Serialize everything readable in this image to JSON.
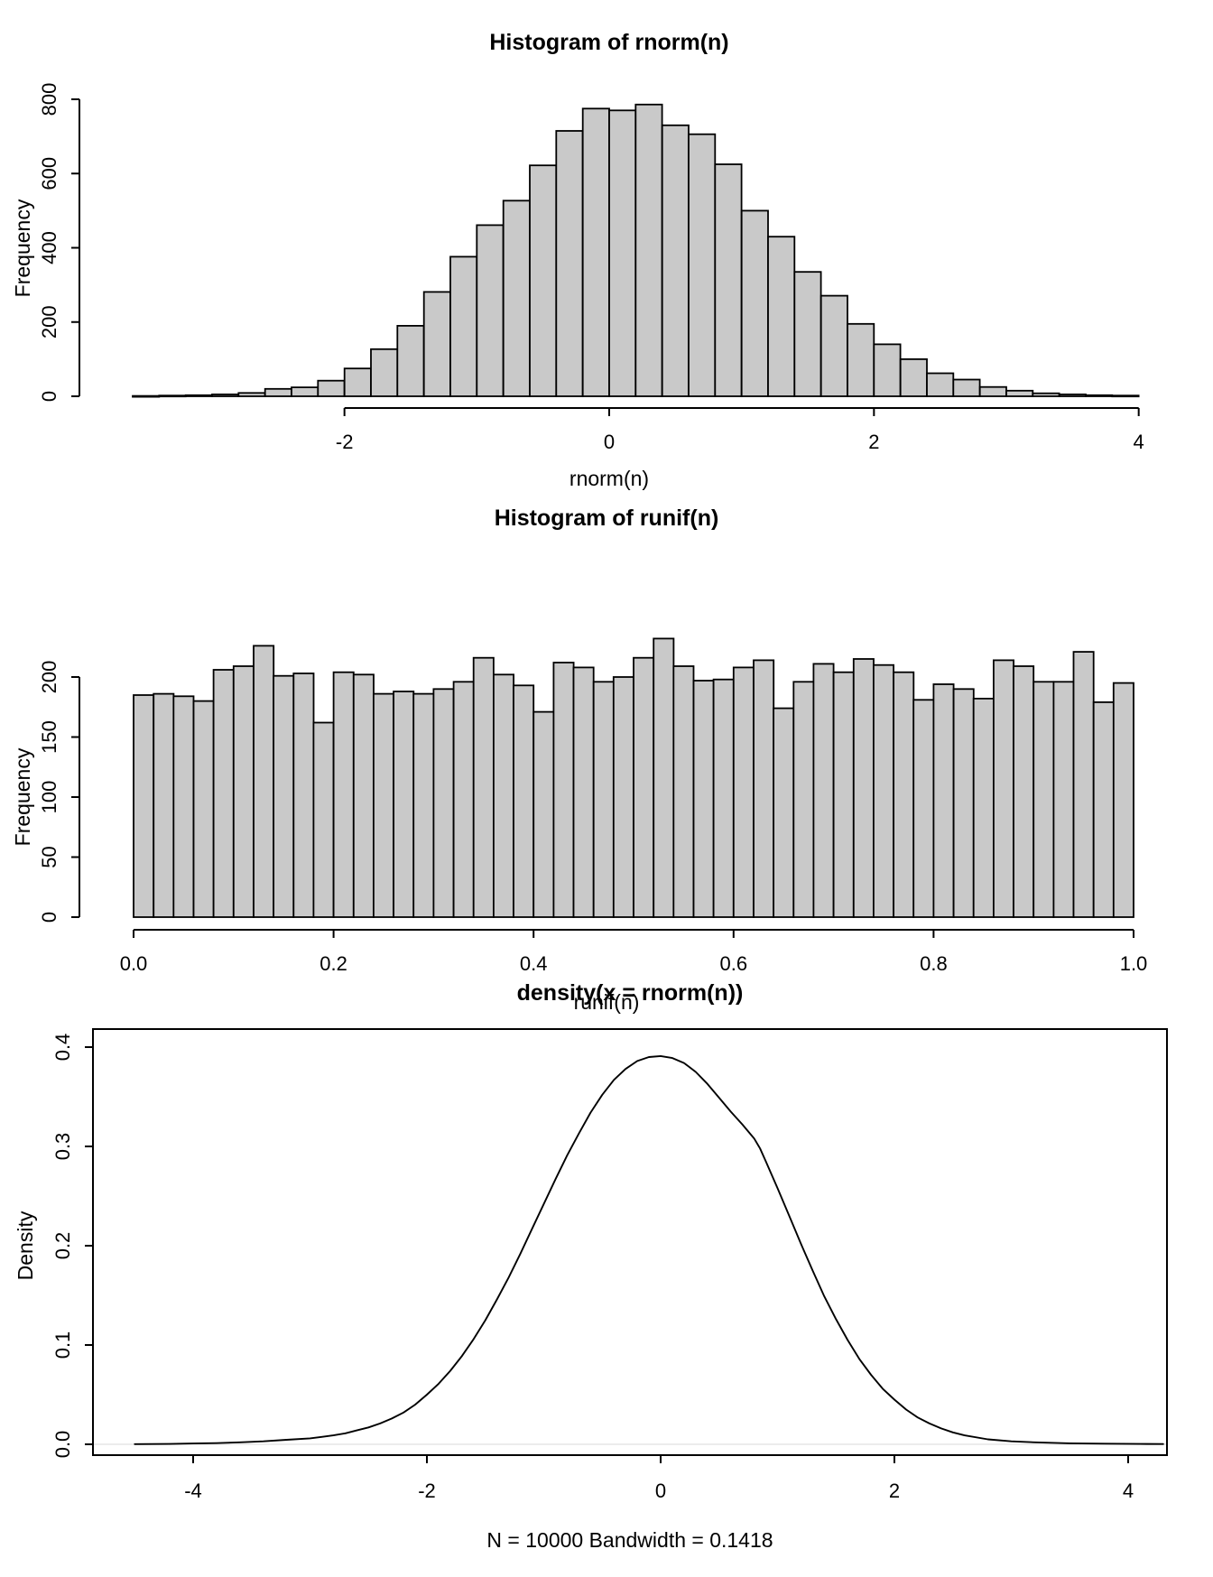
{
  "page": {
    "background": "#ffffff",
    "foreground": "#000000"
  },
  "chart_data": [
    {
      "type": "bar",
      "title": "Histogram of rnorm(n)",
      "xlabel": "rnorm(n)",
      "ylabel": "Frequency",
      "bar_fill": "#c9c9c9",
      "bar_stroke": "#000000",
      "bin_start": -3.6,
      "bin_width": 0.2,
      "counts": [
        1,
        2,
        3,
        5,
        9,
        20,
        24,
        42,
        75,
        127,
        190,
        281,
        376,
        461,
        527,
        622,
        715,
        775,
        770,
        786,
        730,
        706,
        625,
        500,
        430,
        335,
        271,
        195,
        140,
        100,
        62,
        45,
        25,
        15,
        8,
        5,
        3,
        2
      ],
      "xlim": [
        -3.6,
        4.0
      ],
      "ylim": [
        0,
        800
      ],
      "x_ticks": [
        -2,
        0,
        2,
        4
      ],
      "x_tick_labels": [
        "-2",
        "0",
        "2",
        "4"
      ],
      "y_ticks": [
        0,
        200,
        400,
        600,
        800
      ],
      "y_tick_labels": [
        "0",
        "200",
        "400",
        "600",
        "800"
      ],
      "axis_x_span": [
        -2,
        4
      ],
      "grid": false,
      "legend": "none"
    },
    {
      "type": "bar",
      "title": "Histogram of runif(n)",
      "xlabel": "runif(n)",
      "ylabel": "Frequency",
      "bar_fill": "#c9c9c9",
      "bar_stroke": "#000000",
      "bin_start": 0.0,
      "bin_width": 0.02,
      "counts": [
        185,
        186,
        184,
        180,
        206,
        209,
        226,
        201,
        203,
        162,
        204,
        202,
        186,
        188,
        186,
        190,
        196,
        216,
        202,
        193,
        171,
        212,
        208,
        196,
        200,
        216,
        232,
        209,
        197,
        198,
        208,
        214,
        174,
        196,
        211,
        204,
        215,
        210,
        204,
        181,
        194,
        190,
        182,
        214,
        209,
        196,
        196,
        221,
        179,
        195
      ],
      "xlim": [
        0.0,
        1.0
      ],
      "ylim": [
        0,
        200
      ],
      "x_ticks": [
        0.0,
        0.2,
        0.4,
        0.6,
        0.8,
        1.0
      ],
      "x_tick_labels": [
        "0.0",
        "0.2",
        "0.4",
        "0.6",
        "0.8",
        "1.0"
      ],
      "y_ticks": [
        0,
        50,
        100,
        150,
        200
      ],
      "y_tick_labels": [
        "0",
        "50",
        "100",
        "150",
        "200"
      ],
      "axis_x_span": [
        0.0,
        1.0
      ],
      "grid": false,
      "legend": "none"
    },
    {
      "type": "line",
      "title": "density(x = rnorm(n))",
      "xlabel": "N = 10000   Bandwidth = 0.1418",
      "ylabel": "Density",
      "line_color": "#000000",
      "zero_line_color": "#ececec",
      "boxed": true,
      "x": [
        -4.5,
        -4.2,
        -4.0,
        -3.8,
        -3.6,
        -3.4,
        -3.2,
        -3.0,
        -2.9,
        -2.8,
        -2.7,
        -2.6,
        -2.5,
        -2.4,
        -2.3,
        -2.2,
        -2.1,
        -2.0,
        -1.9,
        -1.8,
        -1.7,
        -1.6,
        -1.5,
        -1.4,
        -1.3,
        -1.2,
        -1.1,
        -1.0,
        -0.9,
        -0.8,
        -0.7,
        -0.6,
        -0.5,
        -0.4,
        -0.3,
        -0.2,
        -0.1,
        0.0,
        0.1,
        0.2,
        0.3,
        0.4,
        0.5,
        0.6,
        0.7,
        0.8,
        0.85,
        0.9,
        1.0,
        1.1,
        1.2,
        1.3,
        1.4,
        1.5,
        1.6,
        1.7,
        1.8,
        1.9,
        2.0,
        2.1,
        2.2,
        2.3,
        2.4,
        2.5,
        2.6,
        2.8,
        3.0,
        3.2,
        3.5,
        3.8,
        4.1,
        4.3
      ],
      "y": [
        0.0002,
        0.0004,
        0.0008,
        0.0012,
        0.002,
        0.003,
        0.0045,
        0.006,
        0.0075,
        0.009,
        0.011,
        0.014,
        0.017,
        0.021,
        0.026,
        0.032,
        0.04,
        0.05,
        0.061,
        0.074,
        0.089,
        0.106,
        0.125,
        0.146,
        0.168,
        0.192,
        0.217,
        0.242,
        0.267,
        0.291,
        0.313,
        0.334,
        0.352,
        0.367,
        0.378,
        0.386,
        0.39,
        0.391,
        0.389,
        0.384,
        0.375,
        0.363,
        0.349,
        0.335,
        0.322,
        0.308,
        0.298,
        0.285,
        0.258,
        0.23,
        0.202,
        0.175,
        0.149,
        0.126,
        0.105,
        0.086,
        0.07,
        0.056,
        0.045,
        0.035,
        0.027,
        0.021,
        0.016,
        0.012,
        0.009,
        0.005,
        0.003,
        0.002,
        0.001,
        0.0006,
        0.0004,
        0.0003
      ],
      "xlim": [
        -4.86,
        4.33
      ],
      "ylim": [
        0.0,
        0.4
      ],
      "x_ticks": [
        -4,
        -2,
        0,
        2,
        4
      ],
      "x_tick_labels": [
        "-4",
        "-2",
        "0",
        "2",
        "4"
      ],
      "y_ticks": [
        0.0,
        0.1,
        0.2,
        0.3,
        0.4
      ],
      "y_tick_labels": [
        "0.0",
        "0.1",
        "0.2",
        "0.3",
        "0.4"
      ],
      "grid": false,
      "legend": "none"
    }
  ]
}
